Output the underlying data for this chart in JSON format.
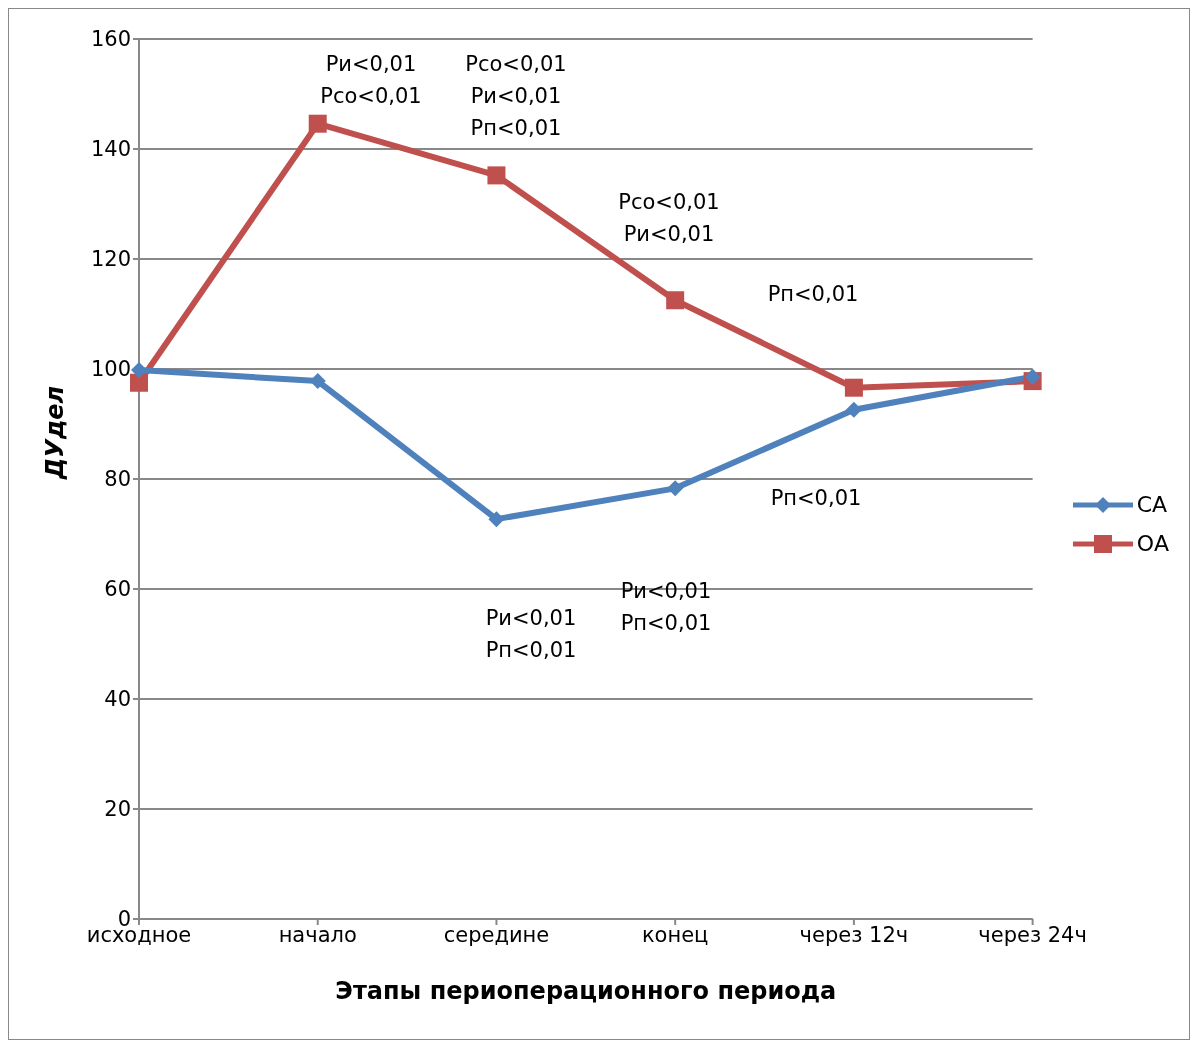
{
  "chart_data": {
    "type": "line",
    "xlabel": "Этапы периоперационного периода",
    "ylabel": "ДУдел",
    "categories": [
      "исходное",
      "начало",
      "середине",
      "конец",
      "через 12ч",
      "через 24ч"
    ],
    "series": [
      {
        "name": "СА",
        "color": "#4f81bd",
        "marker": "diamond",
        "values": [
          99.8,
          97.8,
          72.7,
          78.3,
          92.6,
          98.6
        ]
      },
      {
        "name": "ОА",
        "color": "#c0504d",
        "marker": "square",
        "values": [
          97.5,
          144.6,
          135.2,
          112.5,
          96.6,
          97.8
        ]
      }
    ],
    "ylim": [
      0,
      160
    ],
    "yticks": [
      0,
      20,
      40,
      60,
      80,
      100,
      120,
      140,
      160
    ],
    "grid": "y",
    "legend": "right",
    "line_style": "solid",
    "annotations": [
      "Ри<0,01\nРсо<0,01",
      "Рсо<0,01\nРи<0,01\nРп<0,01",
      "Рсо<0,01\nРи<0,01",
      "Рп<0,01",
      "Рп<0,01",
      "Ри<0,01\nРп<0,01",
      "Ри<0,01\nРп<0,01"
    ]
  }
}
